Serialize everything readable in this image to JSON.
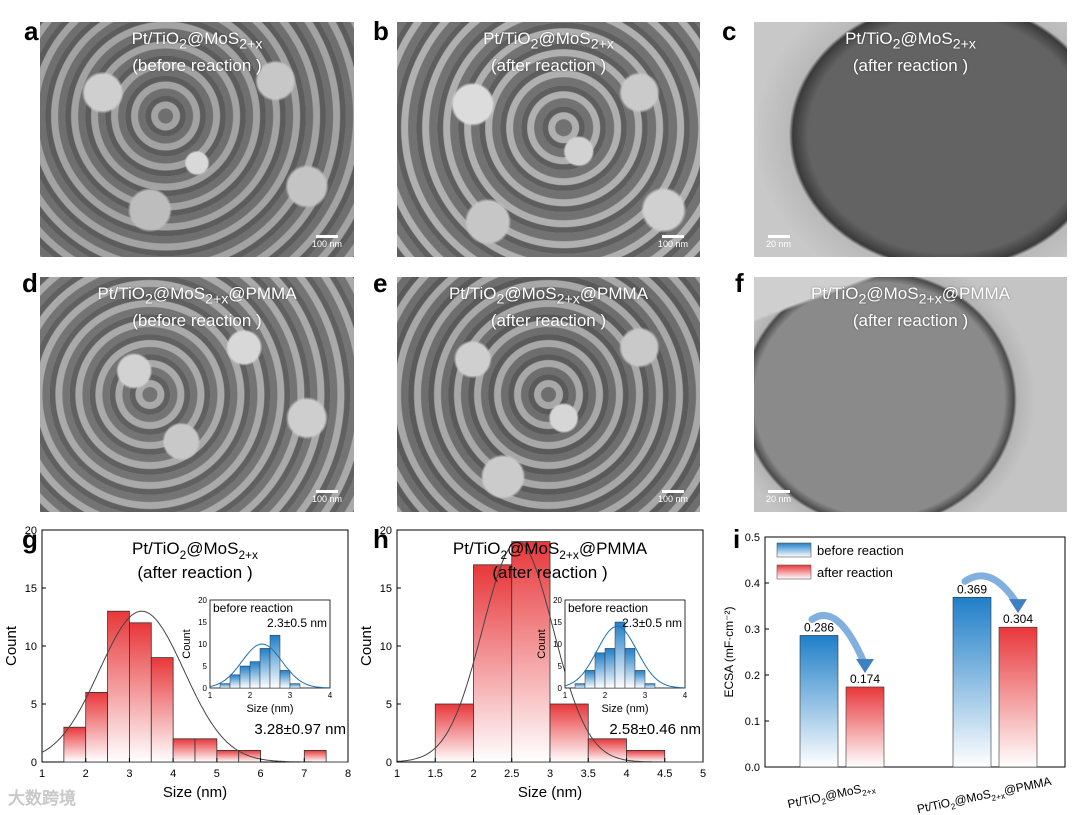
{
  "panels": {
    "a": {
      "letter": "a",
      "line1": "Pt/TiO",
      "sub1": "2",
      "mid": "@MoS",
      "sub2": "2+x",
      "tail": "",
      "line2": "(before reaction )",
      "scale": "100 nm"
    },
    "b": {
      "letter": "b",
      "line1": "Pt/TiO",
      "sub1": "2",
      "mid": "@MoS",
      "sub2": "2+x",
      "tail": "",
      "line2": "(after reaction )",
      "scale": "100 nm"
    },
    "c": {
      "letter": "c",
      "line1": "Pt/TiO",
      "sub1": "2",
      "mid": "@MoS",
      "sub2": "2+x",
      "tail": "",
      "line2": "(after reaction )",
      "scale": "20 nm"
    },
    "d": {
      "letter": "d",
      "line1": "Pt/TiO",
      "sub1": "2",
      "mid": "@MoS",
      "sub2": "2+x",
      "tail": "@PMMA",
      "line2": "(before reaction )",
      "scale": "100 nm"
    },
    "e": {
      "letter": "e",
      "line1": "Pt/TiO",
      "sub1": "2",
      "mid": "@MoS",
      "sub2": "2+x",
      "tail": "@PMMA",
      "line2": "(after reaction )",
      "scale": "100 nm"
    },
    "f": {
      "letter": "f",
      "line1": "Pt/TiO",
      "sub1": "2",
      "mid": "@MoS",
      "sub2": "2+x",
      "tail": "@PMMA",
      "line2": "(after reaction )",
      "scale": "20 nm"
    },
    "g": {
      "letter": "g"
    },
    "h": {
      "letter": "h"
    },
    "i": {
      "letter": "i"
    }
  },
  "colors": {
    "red": "#e8373a",
    "blue": "#1f7fc8",
    "sem_bg": "#8a8a8a",
    "tem_bg": "#9d9d9d"
  },
  "watermark": "大数跨境",
  "chart_data": [
    {
      "type": "bar",
      "panel": "g",
      "title": "Pt/TiO2@MoS2+x",
      "title_parts": [
        "Pt/TiO",
        "2",
        "@MoS",
        "2+x",
        ""
      ],
      "subtitle": "(after reaction )",
      "xlabel": "Size (nm)",
      "ylabel": "Count",
      "xlim": [
        1,
        8
      ],
      "ylim": [
        0,
        20
      ],
      "xticks": [
        1,
        2,
        3,
        4,
        5,
        6,
        7,
        8
      ],
      "yticks": [
        0,
        5,
        10,
        15,
        20
      ],
      "bins": [
        [
          1.5,
          2.0
        ],
        [
          2.0,
          2.5
        ],
        [
          2.5,
          3.0
        ],
        [
          3.0,
          3.5
        ],
        [
          3.5,
          4.0
        ],
        [
          4.0,
          4.5
        ],
        [
          4.5,
          5.0
        ],
        [
          5.0,
          5.5
        ],
        [
          5.5,
          6.0
        ],
        [
          7.0,
          7.5
        ]
      ],
      "values": [
        3,
        6,
        13,
        12,
        9,
        2,
        2,
        1,
        1,
        1
      ],
      "fit": {
        "mean": 3.28,
        "sd": 0.97,
        "peak": 13
      },
      "annotation": "3.28±0.97 nm",
      "inset": {
        "title": "before reaction",
        "annotation": "2.3±0.5 nm",
        "xlabel": "Size (nm)",
        "ylabel": "Count",
        "xlim": [
          1,
          4
        ],
        "ylim": [
          0,
          20
        ],
        "xticks": [
          1,
          2,
          3,
          4
        ],
        "yticks": [
          0,
          5,
          10,
          15,
          20
        ],
        "bins": [
          [
            1.25,
            1.5
          ],
          [
            1.5,
            1.75
          ],
          [
            1.75,
            2.0
          ],
          [
            2.0,
            2.25
          ],
          [
            2.25,
            2.5
          ],
          [
            2.5,
            2.75
          ],
          [
            2.75,
            3.0
          ],
          [
            3.0,
            3.25
          ]
        ],
        "values": [
          1,
          3,
          5,
          6,
          9,
          12,
          4,
          1
        ],
        "fit": {
          "mean": 2.3,
          "sd": 0.5,
          "peak": 10
        }
      }
    },
    {
      "type": "bar",
      "panel": "h",
      "title": "Pt/TiO2@MoS2+x@PMMA",
      "title_parts": [
        "Pt/TiO",
        "2",
        "@MoS",
        "2+x",
        "@PMMA"
      ],
      "subtitle": "(after reaction )",
      "xlabel": "Size (nm)",
      "ylabel": "Count",
      "xlim": [
        1,
        5
      ],
      "ylim": [
        0,
        20
      ],
      "xticks": [
        1,
        1.5,
        2,
        2.5,
        3,
        3.5,
        4,
        4.5,
        5
      ],
      "yticks": [
        0,
        5,
        10,
        15,
        20
      ],
      "bins": [
        [
          1.5,
          2.0
        ],
        [
          2.0,
          2.5
        ],
        [
          2.5,
          3.0
        ],
        [
          3.0,
          3.5
        ],
        [
          3.5,
          4.0
        ],
        [
          4.0,
          4.5
        ]
      ],
      "values": [
        5,
        17,
        19,
        5,
        2,
        1
      ],
      "fit": {
        "mean": 2.58,
        "sd": 0.46,
        "peak": 19
      },
      "annotation": "2.58±0.46 nm",
      "inset": {
        "title": "before reaction",
        "annotation": "2.3±0.5 nm",
        "xlabel": "Size (nm)",
        "ylabel": "Count",
        "xlim": [
          1,
          4
        ],
        "ylim": [
          0,
          20
        ],
        "xticks": [
          1,
          2,
          3,
          4
        ],
        "yticks": [
          0,
          5,
          10,
          15,
          20
        ],
        "bins": [
          [
            1.25,
            1.5
          ],
          [
            1.5,
            1.75
          ],
          [
            1.75,
            2.0
          ],
          [
            2.0,
            2.25
          ],
          [
            2.25,
            2.5
          ],
          [
            2.5,
            2.75
          ],
          [
            2.75,
            3.0
          ],
          [
            3.0,
            3.25
          ]
        ],
        "values": [
          1,
          4,
          8,
          9,
          15,
          9,
          4,
          1
        ],
        "fit": {
          "mean": 2.3,
          "sd": 0.5,
          "peak": 14
        }
      }
    },
    {
      "type": "bar",
      "panel": "i",
      "ylabel": "ECSA (mF·cm⁻²)",
      "ylim": [
        0,
        0.5
      ],
      "yticks": [
        0.0,
        0.1,
        0.2,
        0.3,
        0.4,
        0.5
      ],
      "categories": [
        {
          "parts": [
            "Pt/TiO",
            "2",
            "@MoS",
            "2+x",
            ""
          ]
        },
        {
          "parts": [
            "Pt/TiO",
            "2",
            "@MoS",
            "2+x",
            "@PMMA"
          ]
        }
      ],
      "series": [
        {
          "name": "before reaction",
          "values": [
            0.286,
            0.369
          ],
          "labels": [
            "0.286",
            "0.369"
          ]
        },
        {
          "name": "after reaction",
          "values": [
            0.174,
            0.304
          ],
          "labels": [
            "0.174",
            "0.304"
          ]
        }
      ],
      "legend": "top-left"
    }
  ]
}
